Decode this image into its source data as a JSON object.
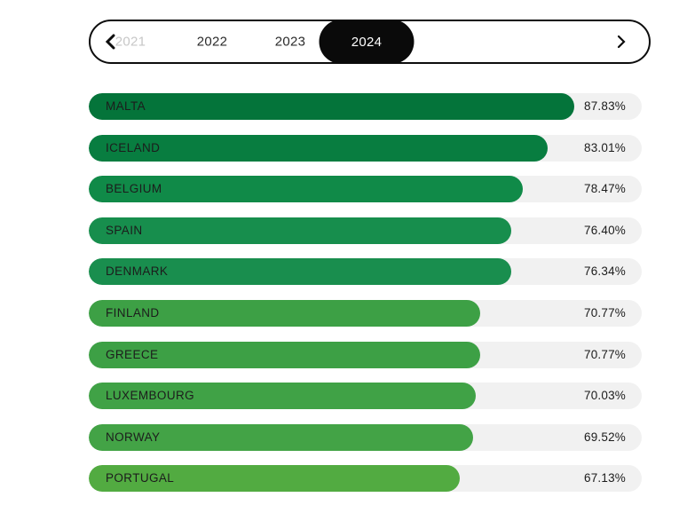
{
  "year_selector": {
    "prev_icon": "chevron-left-icon",
    "next_icon": "chevron-right-icon",
    "tabs": [
      {
        "label": "2021",
        "state": "disabled"
      },
      {
        "label": "2022",
        "state": "normal"
      },
      {
        "label": "2023",
        "state": "normal"
      },
      {
        "label": "2024",
        "state": "selected"
      }
    ],
    "selected_year": "2024"
  },
  "chart_data": {
    "type": "bar",
    "orientation": "horizontal",
    "categories": [
      "MALTA",
      "ICELAND",
      "BELGIUM",
      "SPAIN",
      "DENMARK",
      "FINLAND",
      "GREECE",
      "LUXEMBOURG",
      "NORWAY",
      "PORTUGAL"
    ],
    "values": [
      87.83,
      83.01,
      78.47,
      76.4,
      76.34,
      70.77,
      70.77,
      70.03,
      69.52,
      67.13
    ],
    "value_labels": [
      "87.83%",
      "83.01%",
      "78.47%",
      "76.40%",
      "76.34%",
      "70.77%",
      "70.77%",
      "70.03%",
      "69.52%",
      "67.13%"
    ],
    "bar_colors": [
      "#04743a",
      "#087d40",
      "#108a48",
      "#178e4d",
      "#198e4e",
      "#3da045",
      "#3da045",
      "#40a246",
      "#43a346",
      "#52ab41"
    ],
    "track_color": "#f1f1f1",
    "xlim": [
      0,
      100
    ],
    "title": "",
    "xlabel": "",
    "ylabel": "",
    "legend": "none",
    "grid": false
  },
  "colors": {
    "selected_tab_bg": "#0a0a0a",
    "selected_tab_text": "#ffffff",
    "tab_text": "#2b2b2b",
    "disabled_tab_text": "#c7c7c7",
    "border": "#0d0d0d",
    "label_text": "#1c1c1c",
    "background": "#ffffff"
  }
}
